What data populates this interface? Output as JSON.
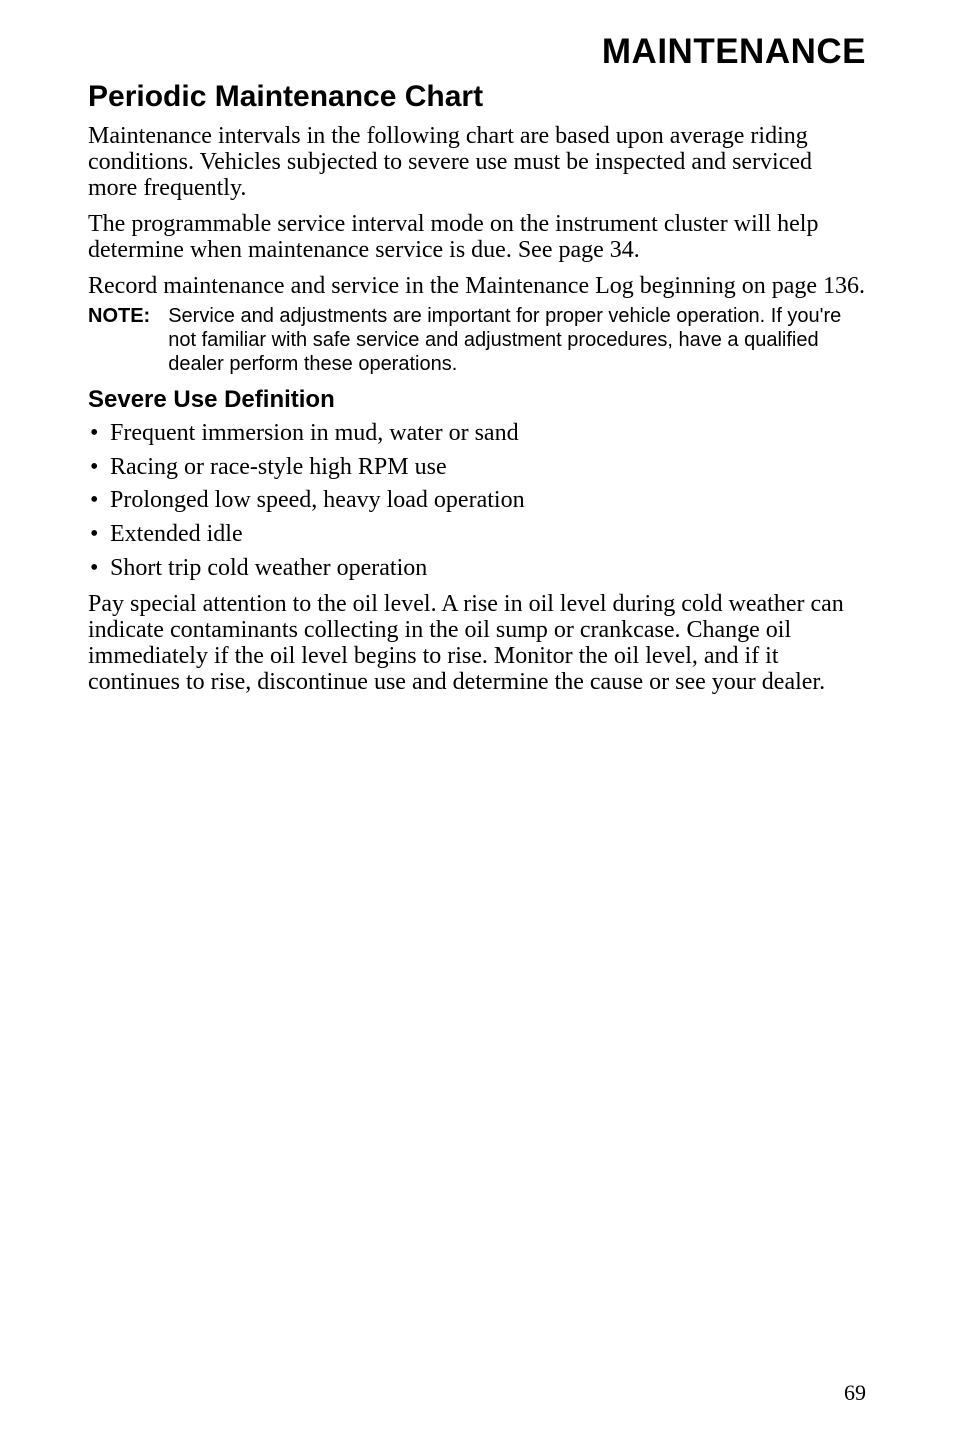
{
  "header": {
    "doc_title": "MAINTENANCE",
    "doc_title_fontsize": 35
  },
  "section": {
    "title": "Periodic Maintenance Chart",
    "title_fontsize": 30
  },
  "body": {
    "fontsize": 24,
    "paragraphs": [
      "Maintenance intervals in the following chart are based upon average riding conditions. Vehicles subjected to severe use must be inspected and serviced more frequently.",
      "The programmable service interval mode on the instrument cluster will help determine when maintenance service is due. See page 34.",
      "Record maintenance and service in the Maintenance Log beginning on page 136."
    ]
  },
  "note": {
    "label": "NOTE:",
    "label_fontsize": 20,
    "body": "Service and adjustments are important for proper vehicle operation. If you're not familiar with safe service and adjustment procedures, have a qualified dealer perform these operations.",
    "body_fontsize": 20
  },
  "subheading": {
    "text": "Severe Use Definition",
    "fontsize": 24
  },
  "bullets": {
    "fontsize": 24,
    "items": [
      "Frequent immersion in mud, water or sand",
      "Racing or race-style high RPM use",
      "Prolonged low speed, heavy load operation",
      "Extended idle",
      "Short trip cold weather operation"
    ]
  },
  "closing": {
    "fontsize": 24,
    "text": "Pay special attention to the oil level. A rise in oil level during cold weather can indicate contaminants collecting in the oil sump or crankcase. Change oil immediately if the oil level begins to rise. Monitor the oil level, and if it continues to rise, discontinue use and determine the cause or see your dealer."
  },
  "page_number": {
    "value": "69",
    "fontsize": 22
  },
  "colors": {
    "text": "#000000",
    "background": "#ffffff"
  }
}
